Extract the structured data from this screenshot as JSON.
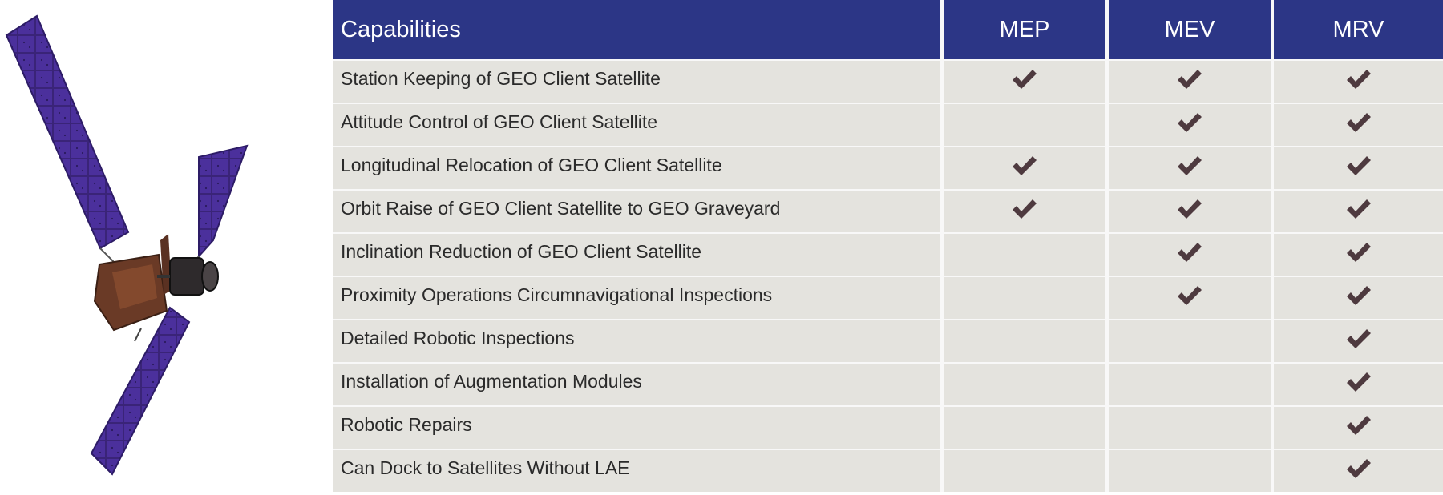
{
  "table": {
    "header": {
      "capabilities": "Capabilities",
      "columns": [
        "MEP",
        "MEV",
        "MRV"
      ]
    },
    "rows": [
      {
        "label": "Station Keeping of GEO Client Satellite",
        "mep": true,
        "mev": true,
        "mrv": true
      },
      {
        "label": "Attitude Control of GEO Client Satellite",
        "mep": false,
        "mev": true,
        "mrv": true
      },
      {
        "label": "Longitudinal Relocation of GEO Client Satellite",
        "mep": true,
        "mev": true,
        "mrv": true
      },
      {
        "label": "Orbit Raise of GEO Client Satellite to GEO Graveyard",
        "mep": true,
        "mev": true,
        "mrv": true
      },
      {
        "label": "Inclination Reduction of GEO Client Satellite",
        "mep": false,
        "mev": true,
        "mrv": true
      },
      {
        "label": "Proximity Operations Circumnavigational Inspections",
        "mep": false,
        "mev": true,
        "mrv": true
      },
      {
        "label": "Detailed Robotic Inspections",
        "mep": false,
        "mev": false,
        "mrv": true
      },
      {
        "label": "Installation of Augmentation Modules",
        "mep": false,
        "mev": false,
        "mrv": true
      },
      {
        "label": "Robotic Repairs",
        "mep": false,
        "mev": false,
        "mrv": true
      },
      {
        "label": "Can Dock to Satellites Without LAE",
        "mep": false,
        "mev": false,
        "mrv": true
      }
    ]
  },
  "colors": {
    "header_bg": "#2c3686",
    "row_bg": "#e4e3de",
    "check": "#4e3a3f",
    "panel": "#4a2f9a",
    "bus": "#5a3424"
  },
  "icons": {
    "check": "check-icon",
    "illustration": "satellite-illustration"
  }
}
